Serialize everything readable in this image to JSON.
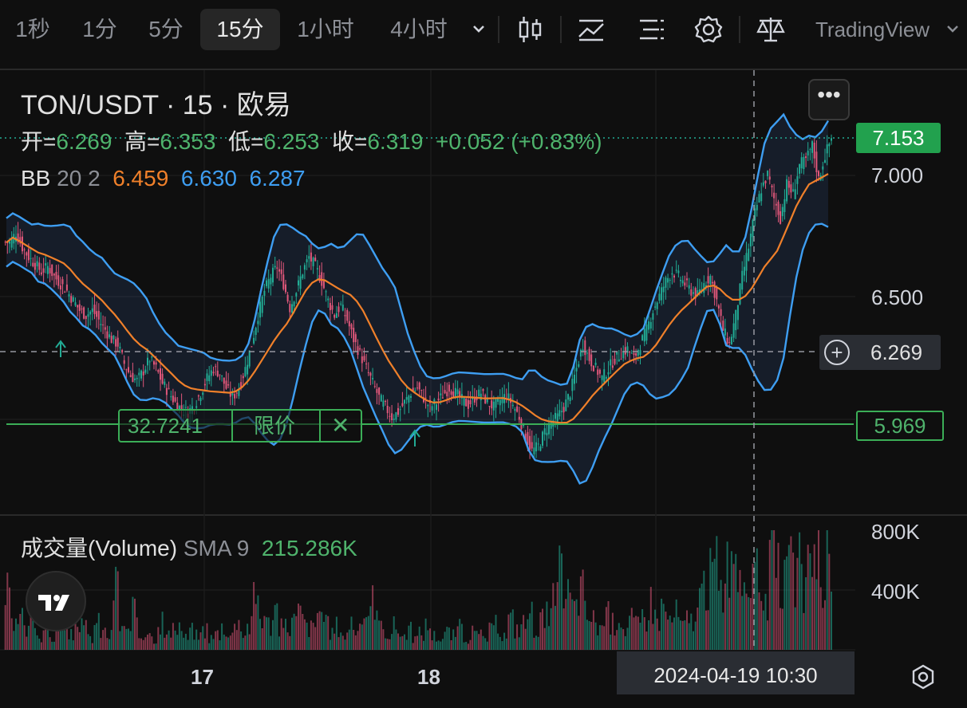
{
  "toolbar": {
    "timeframes": [
      "1秒",
      "1分",
      "5分",
      "15分",
      "1小时",
      "4小时"
    ],
    "active_timeframe": "15分",
    "brand": "TradingView",
    "icons": [
      "chevron-down-icon",
      "candlestick-icon",
      "indicator-icon",
      "layout-icon",
      "gear-icon",
      "balance-icon"
    ]
  },
  "legend": {
    "symbol": "TON/USDT · 15 · 欧易",
    "ohlc": {
      "open_label": "开=",
      "open": "6.269",
      "high_label": "高=",
      "high": "6.353",
      "low_label": "低=",
      "low": "6.253",
      "close_label": "收=",
      "close": "6.319",
      "change": "+0.052 (+0.83%)"
    },
    "bb": {
      "label": "BB",
      "params": "20 2",
      "basis": "6.459",
      "upper": "6.630",
      "lower": "6.287"
    },
    "volume": {
      "label": "成交量(Volume)",
      "sma": "SMA 9",
      "value": "215.286K"
    }
  },
  "price_axis": {
    "labels": [
      "7.000",
      "6.500"
    ],
    "last_price": "7.153",
    "order_line_price": "5.969",
    "crosshair_price": "6.269"
  },
  "volume_axis": {
    "labels": [
      "800K",
      "400K"
    ]
  },
  "order": {
    "qty": "32.7241",
    "type": "限价",
    "close_glyph": "✕"
  },
  "time_axis": {
    "labels": [
      "17",
      "18"
    ],
    "crosshair_time": "2024-04-19   10:30"
  },
  "colors": {
    "up": "#22ab94",
    "down": "#e0577a",
    "basis": "#f0802a",
    "bands": "#3e9ef2",
    "order": "#3bae57",
    "background": "#0f0f0f"
  },
  "chart_data": {
    "type": "candlestick",
    "title": "TON/USDT · 15 · 欧易",
    "ylim": [
      5.75,
      7.25
    ],
    "x": [
      "17",
      "18",
      "2024-04-19 10:30"
    ],
    "series": [
      {
        "name": "BB",
        "values": {
          "basis": 6.459,
          "upper": 6.63,
          "lower": 6.287
        }
      },
      {
        "name": "成交量(Volume)",
        "values": {
          "sma9": "215.286K"
        }
      }
    ],
    "markers": {
      "order_line": 5.969,
      "crosshair": 6.269,
      "last": 7.153
    },
    "close_path": [
      6.72,
      6.76,
      6.7,
      6.66,
      6.63,
      6.6,
      6.62,
      6.58,
      6.55,
      6.52,
      6.48,
      6.44,
      6.42,
      6.44,
      6.4,
      6.36,
      6.32,
      6.3,
      6.22,
      6.17,
      6.15,
      6.19,
      6.24,
      6.2,
      6.14,
      6.1,
      6.06,
      6.03,
      6.02,
      6.05,
      6.1,
      6.16,
      6.2,
      6.18,
      6.12,
      6.08,
      6.12,
      6.2,
      6.3,
      6.42,
      6.52,
      6.58,
      6.62,
      6.55,
      6.45,
      6.52,
      6.6,
      6.66,
      6.62,
      6.56,
      6.48,
      6.42,
      6.46,
      6.4,
      6.32,
      6.26,
      6.2,
      6.14,
      6.08,
      6.04,
      6.0,
      6.02,
      6.06,
      6.1,
      6.12,
      6.08,
      6.04,
      6.06,
      6.09,
      6.12,
      6.1,
      6.07,
      6.05,
      6.08,
      6.1,
      6.06,
      6.04,
      6.07,
      6.09,
      6.05,
      6.0,
      5.92,
      5.86,
      5.88,
      5.94,
      5.98,
      6.0,
      6.04,
      6.1,
      6.2,
      6.3,
      6.24,
      6.2,
      6.16,
      6.2,
      6.24,
      6.26,
      6.28,
      6.24,
      6.3,
      6.36,
      6.44,
      6.5,
      6.56,
      6.6,
      6.58,
      6.55,
      6.52,
      6.5,
      6.55,
      6.58,
      6.48,
      6.36,
      6.3,
      6.42,
      6.58,
      6.7,
      6.84,
      6.94,
      7.0,
      6.9,
      6.82,
      6.96,
      6.92,
      7.04,
      7.06,
      7.12,
      6.98,
      7.08,
      7.15
    ],
    "volume_path": [
      0.45,
      0.18,
      0.25,
      0.15,
      0.3,
      0.12,
      0.2,
      0.1,
      0.35,
      0.15,
      0.12,
      0.28,
      0.18,
      0.1,
      0.22,
      0.15,
      0.12,
      0.55,
      0.2,
      0.14,
      0.3,
      0.12,
      0.18,
      0.1,
      0.25,
      0.12,
      0.15,
      0.2,
      0.1,
      0.16,
      0.12,
      0.18,
      0.1,
      0.14,
      0.2,
      0.12,
      0.3,
      0.15,
      0.2,
      0.45,
      0.3,
      0.22,
      0.35,
      0.18,
      0.2,
      0.25,
      0.3,
      0.2,
      0.18,
      0.35,
      0.2,
      0.15,
      0.2,
      0.12,
      0.25,
      0.15,
      0.3,
      0.4,
      0.22,
      0.18,
      0.14,
      0.2,
      0.12,
      0.16,
      0.1,
      0.14,
      0.2,
      0.12,
      0.1,
      0.15,
      0.12,
      0.18,
      0.1,
      0.14,
      0.12,
      0.1,
      0.16,
      0.2,
      0.12,
      0.25,
      0.18,
      0.22,
      0.3,
      0.2,
      0.25,
      0.28,
      0.4,
      0.6,
      0.45,
      0.35,
      0.5,
      0.3,
      0.25,
      0.2,
      0.28,
      0.22,
      0.3,
      0.18,
      0.25,
      0.2,
      0.3,
      0.4,
      0.28,
      0.35,
      0.25,
      0.3,
      0.2,
      0.25,
      0.3,
      0.45,
      0.6,
      0.7,
      0.5,
      0.8,
      0.55,
      0.65,
      0.75,
      0.5,
      0.6,
      0.45,
      0.8,
      0.6,
      0.55,
      0.65,
      0.7,
      0.5,
      0.6,
      0.95,
      0.45,
      0.7
    ]
  }
}
